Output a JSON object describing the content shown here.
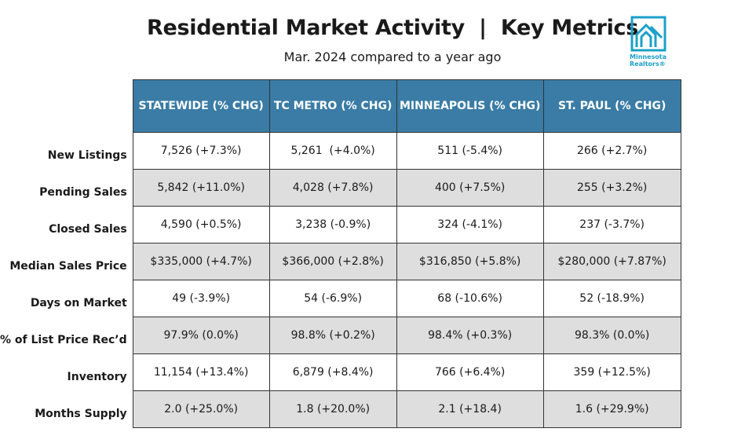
{
  "header": {
    "title": "Residential Market Activity  |  Key Metrics",
    "subtitle": "Mar. 2024 compared to a year ago"
  },
  "logo": {
    "line1": "Minnesota",
    "line2": "Realtors®",
    "icon": "house-logo-icon",
    "color": "#1aa0c8"
  },
  "colors": {
    "header_bg": "#3a7ca5",
    "alt_row": "#dedede"
  },
  "table": {
    "columns": [
      "STATEWIDE (% CHG)",
      "TC METRO (% CHG)",
      "MINNEAPOLIS (% CHG)",
      "ST. PAUL (% CHG)"
    ],
    "rows": [
      {
        "label": "New Listings",
        "values": [
          "7,526 (+7.3%)",
          "5,261  (+4.0%)",
          "511 (-5.4%)",
          "266 (+2.7%)"
        ]
      },
      {
        "label": "Pending Sales",
        "values": [
          "5,842 (+11.0%)",
          "4,028 (+7.8%)",
          "400 (+7.5%)",
          "255 (+3.2%)"
        ]
      },
      {
        "label": "Closed Sales",
        "values": [
          "4,590 (+0.5%)",
          "3,238 (-0.9%)",
          "324 (-4.1%)",
          "237 (-3.7%)"
        ]
      },
      {
        "label": "Median Sales Price",
        "values": [
          "$335,000 (+4.7%)",
          "$366,000 (+2.8%)",
          "$316,850 (+5.8%)",
          "$280,000 (+7.87%)"
        ]
      },
      {
        "label": "Days on Market",
        "values": [
          "49 (-3.9%)",
          "54 (-6.9%)",
          "68 (-10.6%)",
          "52 (-18.9%)"
        ]
      },
      {
        "label": "% of List Price Rec’d",
        "values": [
          "97.9% (0.0%)",
          "98.8% (+0.2%)",
          "98.4% (+0.3%)",
          "98.3% (0.0%)"
        ]
      },
      {
        "label": "Inventory",
        "values": [
          "11,154 (+13.4%)",
          "6,879 (+8.4%)",
          "766 (+6.4%)",
          "359 (+12.5%)"
        ]
      },
      {
        "label": "Months Supply",
        "values": [
          "2.0 (+25.0%)",
          "1.8 (+20.0%)",
          "2.1 (+18.4)",
          "1.6 (+29.9%)"
        ]
      }
    ]
  }
}
